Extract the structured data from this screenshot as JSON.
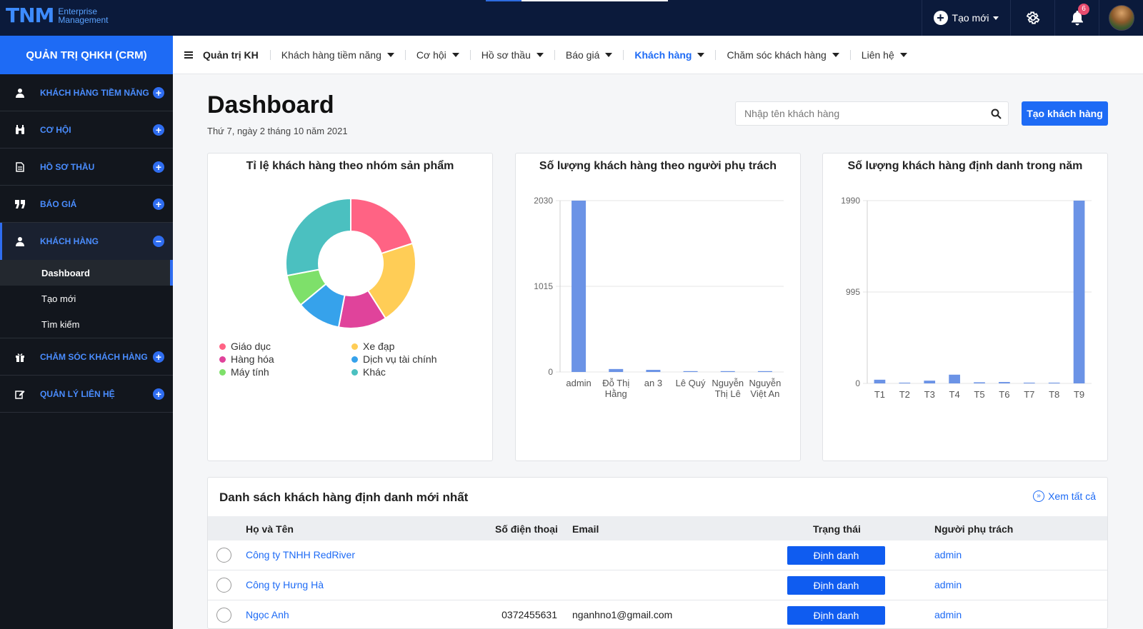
{
  "brand": {
    "mark": "TNM",
    "sub1": "Enterprise",
    "sub2": "Management"
  },
  "topbar": {
    "create_label": "Tạo mới",
    "notif_count": "6"
  },
  "sidebar": {
    "title": "QUẢN TRỊ QHKH (CRM)",
    "items": [
      {
        "label": "KHÁCH HÀNG TIỀM NĂNG"
      },
      {
        "label": "CƠ HỘI"
      },
      {
        "label": "HỒ SƠ THẦU"
      },
      {
        "label": "BÁO GIÁ"
      },
      {
        "label": "KHÁCH HÀNG"
      },
      {
        "label": "CHĂM SÓC KHÁCH HÀNG"
      },
      {
        "label": "QUẢN LÝ LIÊN HỆ"
      }
    ],
    "subitems": [
      {
        "label": "Dashboard"
      },
      {
        "label": "Tạo mới"
      },
      {
        "label": "Tìm kiếm"
      }
    ]
  },
  "nav": {
    "home": "Quản trị KH",
    "items": [
      {
        "label": "Khách hàng tiềm năng"
      },
      {
        "label": "Cơ hội"
      },
      {
        "label": "Hồ sơ thầu"
      },
      {
        "label": "Báo giá"
      },
      {
        "label": "Khách hàng"
      },
      {
        "label": "Chăm sóc khách hàng"
      },
      {
        "label": "Liên hệ"
      }
    ]
  },
  "page": {
    "title": "Dashboard",
    "date": "Thứ 7, ngày 2 tháng 10 năm 2021",
    "search_placeholder": "Nhập tên khách hàng",
    "create_button": "Tạo khách hàng"
  },
  "colors": {
    "accent": "#1e6bf5",
    "bar": "#6b93e6",
    "sidebar_bg": "#12161d",
    "topbar_bg": "#0b1a3b"
  },
  "chart_data": [
    {
      "type": "pie",
      "title": "Tỉ lệ khách hàng theo nhóm sản phẩm",
      "labels": [
        "Giáo dục",
        "Xe đạp",
        "Hàng hóa",
        "Dịch vụ tài chính",
        "Máy tính",
        "Khác"
      ],
      "slice_order": [
        "Giáo dục",
        "Xe đạp",
        "Hàng hóa",
        "Dịch vụ tài chính",
        "Máy tính",
        "Khác"
      ],
      "values": [
        20,
        21,
        12,
        11,
        8,
        28
      ],
      "colors": [
        "#ff6384",
        "#ffcd56",
        "#e0439b",
        "#36a2eb",
        "#7ee06a",
        "#4bc0c0"
      ]
    },
    {
      "type": "bar",
      "title": "Số lượng khách hàng theo người phụ trách",
      "categories": [
        [
          "admin"
        ],
        [
          "Đỗ Thị",
          "Hằng"
        ],
        [
          "an 3"
        ],
        [
          "Lê Quý"
        ],
        [
          "Nguyễn",
          "Thị Lê"
        ],
        [
          "Nguyễn",
          "Việt An"
        ]
      ],
      "values": [
        2030,
        35,
        25,
        10,
        10,
        10
      ],
      "yticks": [
        "2030",
        "1015",
        "0"
      ],
      "ylim": [
        0,
        2030
      ]
    },
    {
      "type": "bar",
      "title": "Số lượng khách hàng định danh trong năm",
      "categories": [
        [
          "T1"
        ],
        [
          "T2"
        ],
        [
          "T3"
        ],
        [
          "T4"
        ],
        [
          "T5"
        ],
        [
          "T6"
        ],
        [
          "T7"
        ],
        [
          "T8"
        ],
        [
          "T9"
        ]
      ],
      "values": [
        40,
        8,
        30,
        95,
        12,
        15,
        8,
        8,
        1990
      ],
      "yticks": [
        "1990",
        "995",
        "0"
      ],
      "ylim": [
        0,
        1990
      ]
    }
  ],
  "table": {
    "title": "Danh sách khách hàng định danh mới nhất",
    "view_all": "Xem tất cả",
    "headers": {
      "name": "Họ và Tên",
      "phone": "Số điện thoại",
      "email": "Email",
      "status": "Trạng thái",
      "owner": "Người phụ trách"
    },
    "rows": [
      {
        "name": "Công ty TNHH RedRiver",
        "phone": "",
        "email": "",
        "status": "Định danh",
        "owner": "admin"
      },
      {
        "name": "Công ty Hưng Hà",
        "phone": "",
        "email": "",
        "status": "Định danh",
        "owner": "admin"
      },
      {
        "name": "Ngọc Anh",
        "phone": "0372455631",
        "email": "nganhno1@gmail.com",
        "status": "Định danh",
        "owner": "admin"
      }
    ]
  }
}
